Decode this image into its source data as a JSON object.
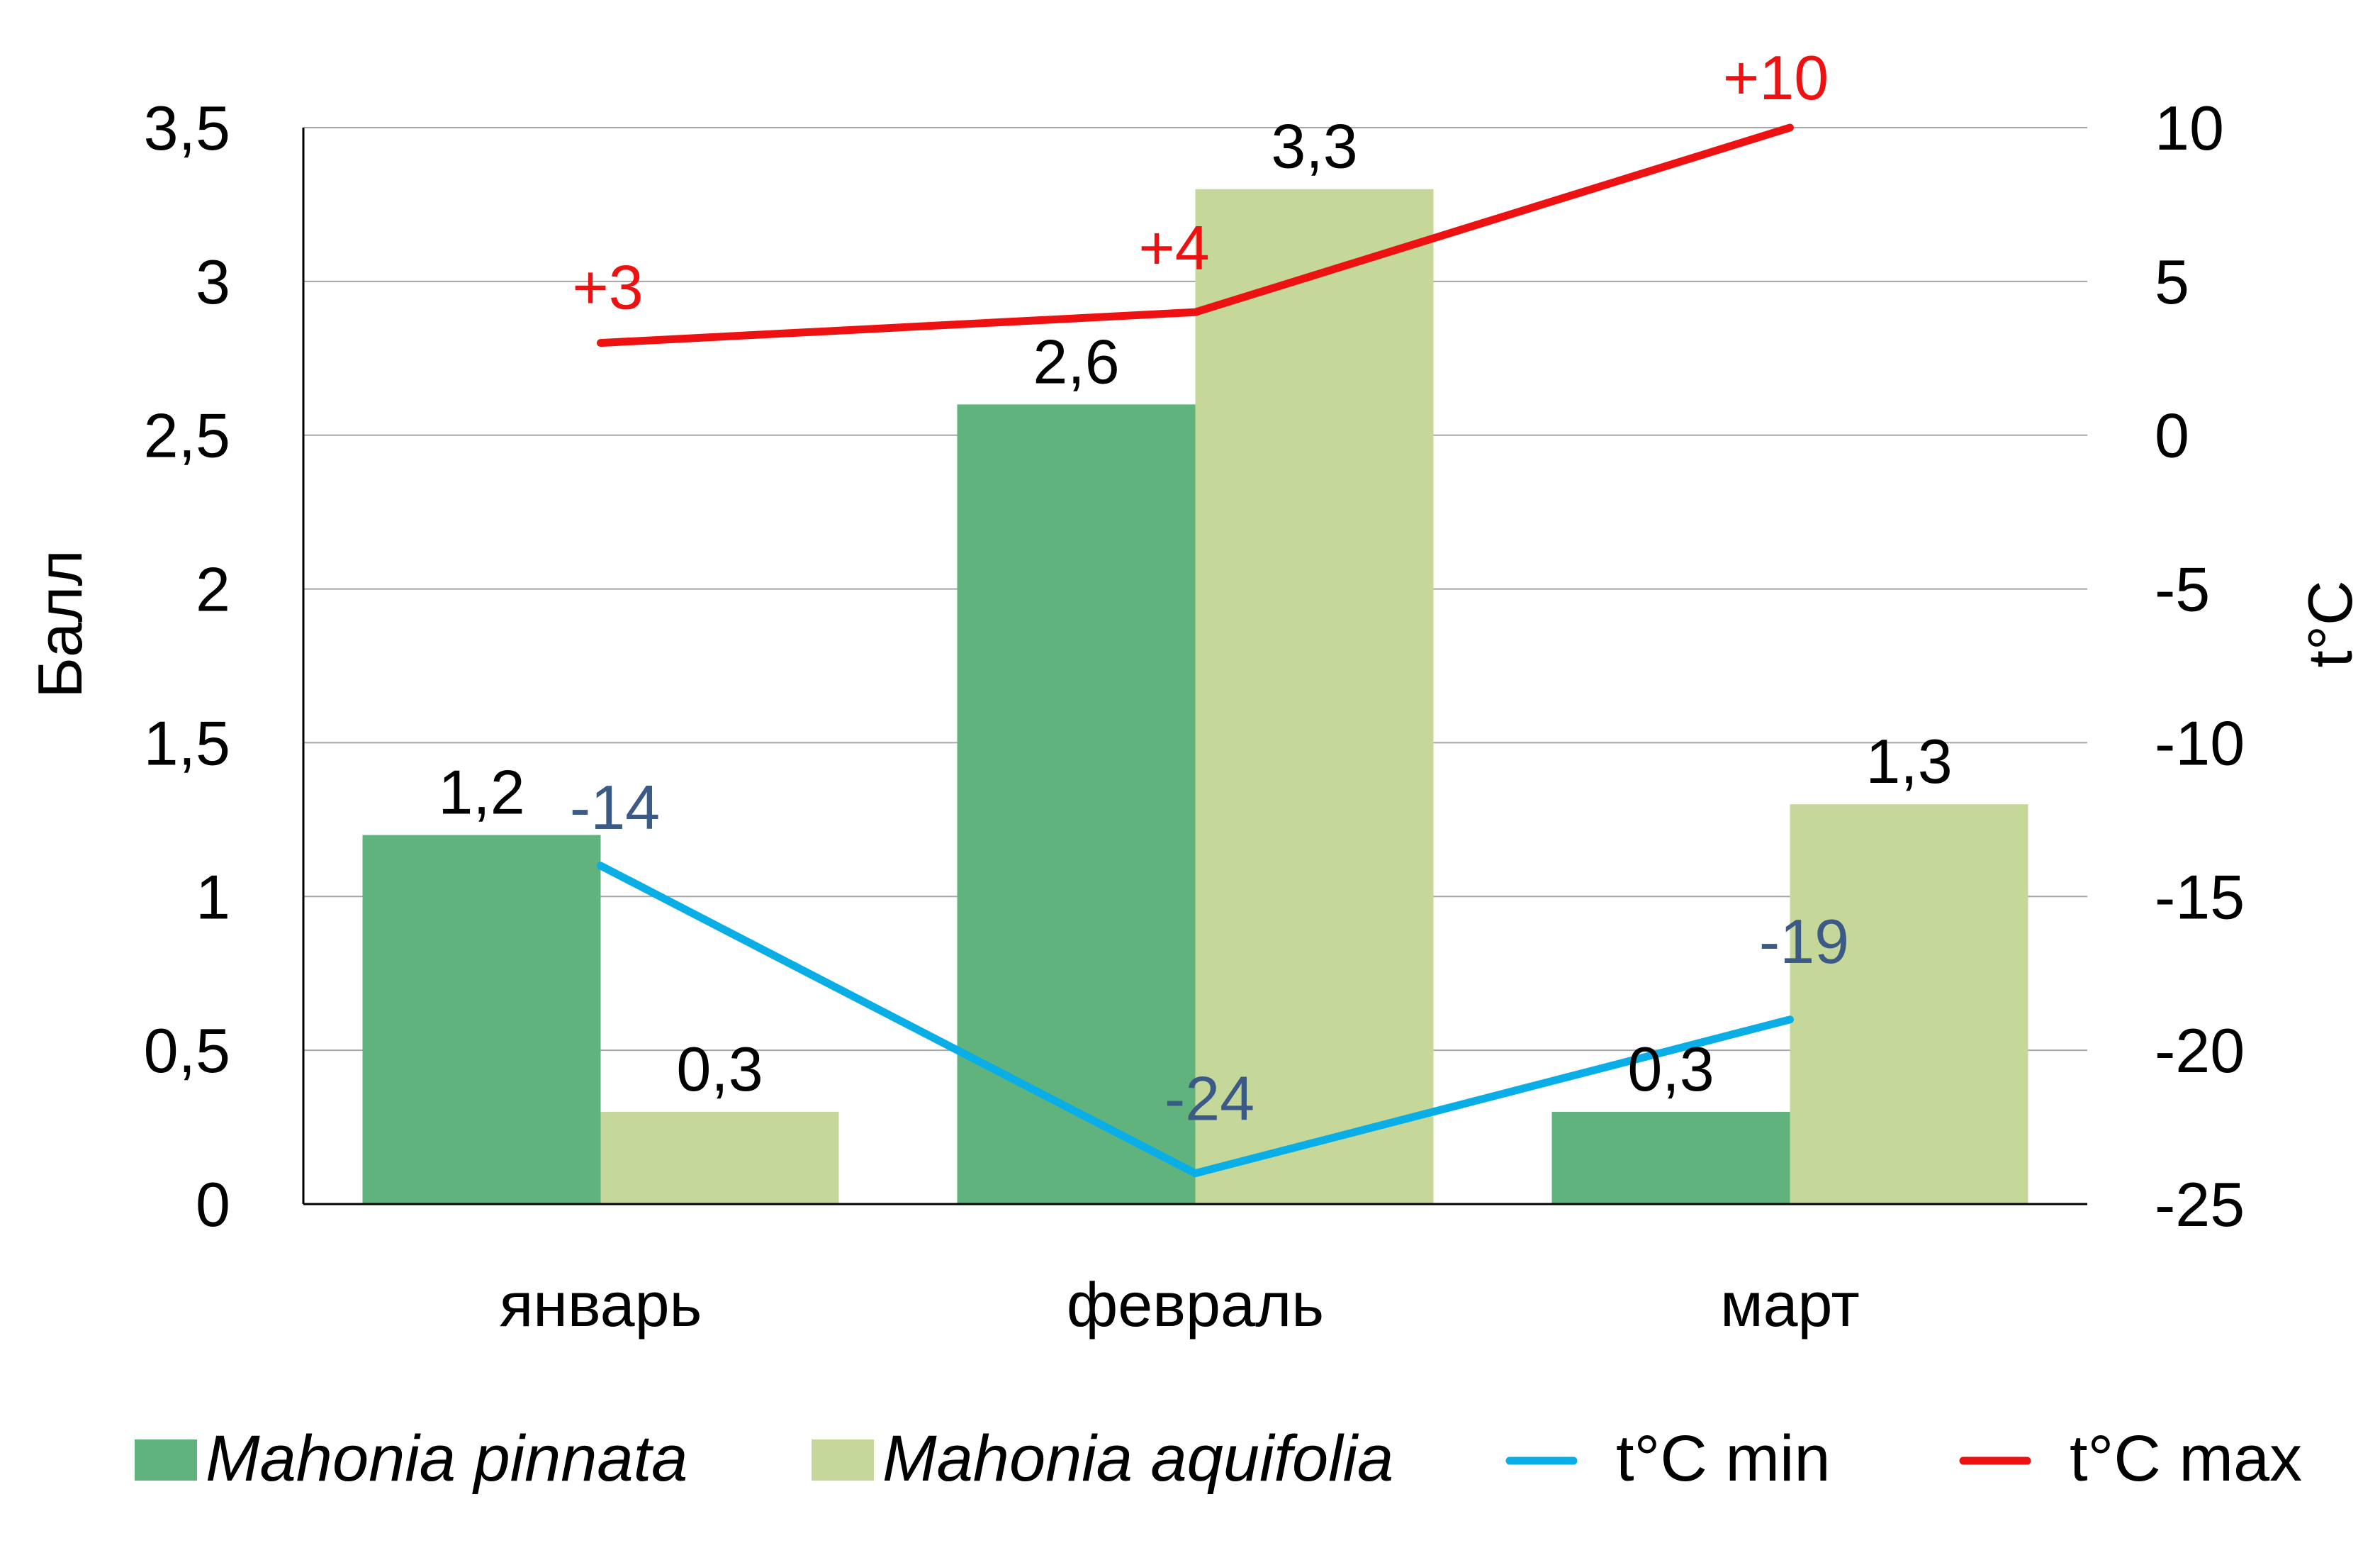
{
  "chart_data": {
    "type": "bar",
    "categories": [
      "январь",
      "февраль",
      "март"
    ],
    "y_left": {
      "label": "Балл",
      "min": 0,
      "max": 3.5,
      "step": 0.5
    },
    "y_right": {
      "label": "t°C",
      "min": -25,
      "max": 10,
      "step": 5
    },
    "grid": true,
    "decimal_separator": ",",
    "legend_position": "bottom",
    "bar_series": [
      {
        "name": "Mahonia pinnata",
        "italic": true,
        "color": "#61b37d",
        "values": [
          1.2,
          2.6,
          0.3
        ],
        "labels": [
          "1,2",
          "2,6",
          "0,3"
        ]
      },
      {
        "name": "Mahonia aquifolia",
        "italic": true,
        "color": "#c5d89a",
        "values": [
          0.3,
          3.3,
          1.3
        ],
        "labels": [
          "0,3",
          "3,3",
          "1,3"
        ]
      }
    ],
    "line_series": [
      {
        "name": "t°C min",
        "axis": "right",
        "color": "#0aaee6",
        "label_color": "#3b5a85",
        "values": [
          -14,
          -24,
          -19
        ],
        "labels": [
          "-14",
          "-24",
          "-19"
        ]
      },
      {
        "name": "t°C max",
        "axis": "right",
        "color": "#ee1111",
        "label_color": "#ee1111",
        "values": [
          3,
          4,
          10
        ],
        "labels": [
          "+3",
          "+4",
          "+10"
        ]
      }
    ]
  }
}
